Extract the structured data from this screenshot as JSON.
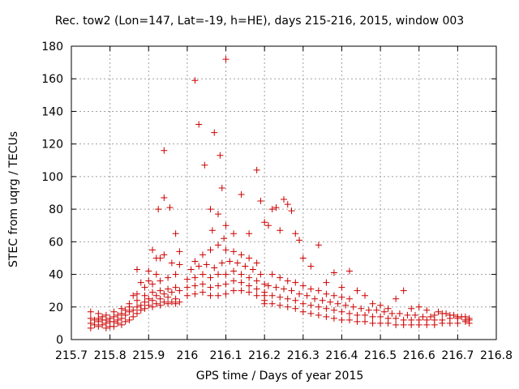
{
  "chart_data": {
    "type": "scatter",
    "title": "Rec. tow2 (Lon=147, Lat=-19, h=HE), days 215-216, 2015, window 003",
    "xlabel": "GPS time / Days of year 2015",
    "ylabel": "STEC from uqrg / TECUs",
    "xlim": [
      215.7,
      216.8
    ],
    "ylim": [
      0,
      180
    ],
    "x_ticks": [
      215.7,
      215.8,
      215.9,
      216.0,
      216.1,
      216.2,
      216.3,
      216.4,
      216.5,
      216.6,
      216.7,
      216.8
    ],
    "x_tick_labels": [
      "215.7",
      "215.8",
      "215.9",
      "216",
      "216.1",
      "216.2",
      "216.3",
      "216.4",
      "216.5",
      "216.6",
      "216.7",
      "216.8"
    ],
    "y_ticks": [
      0,
      20,
      40,
      60,
      80,
      100,
      120,
      140,
      160,
      180
    ],
    "y_tick_labels": [
      "0",
      "20",
      "40",
      "60",
      "80",
      "100",
      "120",
      "140",
      "160",
      "180"
    ],
    "grid": true,
    "marker": "plus",
    "color": "#cc0000",
    "series": [
      {
        "name": "",
        "points": [
          [
            215.75,
            7
          ],
          [
            215.77,
            8
          ],
          [
            215.79,
            7
          ],
          [
            215.81,
            8
          ],
          [
            215.83,
            9
          ],
          [
            215.85,
            12
          ],
          [
            215.87,
            16
          ],
          [
            215.89,
            19
          ],
          [
            215.91,
            20
          ],
          [
            215.93,
            21
          ],
          [
            215.95,
            22
          ],
          [
            215.97,
            22
          ],
          [
            215.75,
            10
          ],
          [
            215.77,
            11
          ],
          [
            215.79,
            10
          ],
          [
            215.81,
            11
          ],
          [
            215.83,
            13
          ],
          [
            215.85,
            17
          ],
          [
            215.87,
            20
          ],
          [
            215.89,
            23
          ],
          [
            215.91,
            24
          ],
          [
            215.93,
            25
          ],
          [
            215.95,
            26
          ],
          [
            215.97,
            25
          ],
          [
            215.75,
            13
          ],
          [
            215.77,
            13
          ],
          [
            215.79,
            12
          ],
          [
            215.81,
            14
          ],
          [
            215.83,
            16
          ],
          [
            215.85,
            20
          ],
          [
            215.87,
            24
          ],
          [
            215.89,
            27
          ],
          [
            215.91,
            29
          ],
          [
            215.93,
            30
          ],
          [
            215.95,
            31
          ],
          [
            215.97,
            32
          ],
          [
            215.75,
            17
          ],
          [
            215.77,
            16
          ],
          [
            215.79,
            15
          ],
          [
            215.81,
            17
          ],
          [
            215.83,
            19
          ],
          [
            215.85,
            22
          ],
          [
            215.87,
            28
          ],
          [
            215.89,
            32
          ],
          [
            215.91,
            34
          ],
          [
            215.93,
            36
          ],
          [
            215.95,
            38
          ],
          [
            215.97,
            40
          ],
          [
            215.76,
            9
          ],
          [
            215.78,
            9
          ],
          [
            215.8,
            8
          ],
          [
            215.82,
            10
          ],
          [
            215.84,
            11
          ],
          [
            215.86,
            14
          ],
          [
            215.88,
            18
          ],
          [
            215.9,
            21
          ],
          [
            215.92,
            22
          ],
          [
            215.94,
            23
          ],
          [
            215.96,
            23
          ],
          [
            215.98,
            23
          ],
          [
            215.76,
            12
          ],
          [
            215.78,
            12
          ],
          [
            215.8,
            11
          ],
          [
            215.82,
            12
          ],
          [
            215.84,
            15
          ],
          [
            215.86,
            18
          ],
          [
            215.88,
            21
          ],
          [
            215.9,
            25
          ],
          [
            215.92,
            27
          ],
          [
            215.94,
            28
          ],
          [
            215.96,
            29
          ],
          [
            215.98,
            30
          ],
          [
            215.78,
            14
          ],
          [
            215.8,
            13
          ],
          [
            215.82,
            15
          ],
          [
            215.84,
            18
          ],
          [
            215.86,
            27
          ],
          [
            215.88,
            35
          ],
          [
            215.9,
            42
          ],
          [
            215.92,
            50
          ],
          [
            215.94,
            52
          ],
          [
            215.96,
            47
          ],
          [
            215.98,
            54
          ],
          [
            215.87,
            43
          ],
          [
            215.9,
            36
          ],
          [
            215.91,
            55
          ],
          [
            215.92,
            40
          ],
          [
            215.925,
            80
          ],
          [
            215.93,
            50
          ],
          [
            215.94,
            87
          ],
          [
            215.94,
            116
          ],
          [
            215.955,
            81
          ],
          [
            215.97,
            65
          ],
          [
            215.98,
            46
          ],
          [
            216.0,
            27
          ],
          [
            216.02,
            28
          ],
          [
            216.04,
            29
          ],
          [
            216.06,
            27
          ],
          [
            216.08,
            27
          ],
          [
            216.1,
            28
          ],
          [
            216.12,
            30
          ],
          [
            216.14,
            30
          ],
          [
            216.16,
            29
          ],
          [
            216.18,
            27
          ],
          [
            216.2,
            24
          ],
          [
            216.0,
            32
          ],
          [
            216.02,
            33
          ],
          [
            216.04,
            34
          ],
          [
            216.06,
            32
          ],
          [
            216.08,
            33
          ],
          [
            216.1,
            34
          ],
          [
            216.12,
            36
          ],
          [
            216.14,
            35
          ],
          [
            216.16,
            33
          ],
          [
            216.18,
            31
          ],
          [
            216.2,
            29
          ],
          [
            216.0,
            37
          ],
          [
            216.02,
            38
          ],
          [
            216.04,
            40
          ],
          [
            216.06,
            38
          ],
          [
            216.08,
            40
          ],
          [
            216.1,
            40
          ],
          [
            216.12,
            42
          ],
          [
            216.14,
            40
          ],
          [
            216.16,
            38
          ],
          [
            216.18,
            36
          ],
          [
            216.2,
            34
          ],
          [
            216.01,
            43
          ],
          [
            216.03,
            45
          ],
          [
            216.05,
            46
          ],
          [
            216.07,
            44
          ],
          [
            216.09,
            47
          ],
          [
            216.11,
            48
          ],
          [
            216.13,
            47
          ],
          [
            216.15,
            45
          ],
          [
            216.17,
            43
          ],
          [
            216.19,
            40
          ],
          [
            216.02,
            48
          ],
          [
            216.04,
            52
          ],
          [
            216.06,
            55
          ],
          [
            216.08,
            58
          ],
          [
            216.1,
            55
          ],
          [
            216.12,
            54
          ],
          [
            216.14,
            52
          ],
          [
            216.16,
            50
          ],
          [
            216.18,
            47
          ],
          [
            216.02,
            159
          ],
          [
            216.03,
            132
          ],
          [
            216.045,
            107
          ],
          [
            216.06,
            80
          ],
          [
            216.065,
            67
          ],
          [
            216.07,
            127
          ],
          [
            216.08,
            77
          ],
          [
            216.085,
            113
          ],
          [
            216.09,
            93
          ],
          [
            216.095,
            62
          ],
          [
            216.1,
            172
          ],
          [
            216.1,
            70
          ],
          [
            216.12,
            65
          ],
          [
            216.14,
            89
          ],
          [
            216.16,
            65
          ],
          [
            216.18,
            104
          ],
          [
            216.19,
            85
          ],
          [
            216.2,
            72
          ],
          [
            216.21,
            70
          ],
          [
            216.22,
            80
          ],
          [
            216.23,
            81
          ],
          [
            216.24,
            67
          ],
          [
            216.25,
            86
          ],
          [
            216.26,
            83
          ],
          [
            216.27,
            79
          ],
          [
            216.28,
            65
          ],
          [
            216.29,
            61
          ],
          [
            216.3,
            50
          ],
          [
            216.32,
            45
          ],
          [
            216.34,
            58
          ],
          [
            216.2,
            22
          ],
          [
            216.22,
            22
          ],
          [
            216.24,
            21
          ],
          [
            216.26,
            20
          ],
          [
            216.28,
            19
          ],
          [
            216.3,
            17
          ],
          [
            216.32,
            16
          ],
          [
            216.34,
            15
          ],
          [
            216.36,
            14
          ],
          [
            216.38,
            13
          ],
          [
            216.4,
            12
          ],
          [
            216.2,
            27
          ],
          [
            216.22,
            27
          ],
          [
            216.24,
            26
          ],
          [
            216.26,
            25
          ],
          [
            216.28,
            24
          ],
          [
            216.3,
            22
          ],
          [
            216.32,
            21
          ],
          [
            216.34,
            20
          ],
          [
            216.36,
            19
          ],
          [
            216.38,
            18
          ],
          [
            216.4,
            17
          ],
          [
            216.21,
            33
          ],
          [
            216.23,
            32
          ],
          [
            216.25,
            31
          ],
          [
            216.27,
            30
          ],
          [
            216.29,
            28
          ],
          [
            216.31,
            27
          ],
          [
            216.33,
            25
          ],
          [
            216.35,
            24
          ],
          [
            216.37,
            23
          ],
          [
            216.39,
            22
          ],
          [
            216.41,
            21
          ],
          [
            216.22,
            40
          ],
          [
            216.24,
            38
          ],
          [
            216.26,
            36
          ],
          [
            216.28,
            35
          ],
          [
            216.3,
            33
          ],
          [
            216.32,
            31
          ],
          [
            216.34,
            30
          ],
          [
            216.36,
            28
          ],
          [
            216.38,
            27
          ],
          [
            216.4,
            26
          ],
          [
            216.42,
            25
          ],
          [
            216.36,
            35
          ],
          [
            216.38,
            41
          ],
          [
            216.4,
            32
          ],
          [
            216.42,
            42
          ],
          [
            216.44,
            30
          ],
          [
            216.46,
            27
          ],
          [
            216.48,
            22
          ],
          [
            216.5,
            21
          ],
          [
            216.52,
            19
          ],
          [
            216.54,
            25
          ],
          [
            216.56,
            30
          ],
          [
            216.42,
            12
          ],
          [
            216.44,
            11
          ],
          [
            216.46,
            11
          ],
          [
            216.48,
            10
          ],
          [
            216.5,
            10
          ],
          [
            216.52,
            10
          ],
          [
            216.54,
            9
          ],
          [
            216.56,
            9
          ],
          [
            216.58,
            9
          ],
          [
            216.6,
            9
          ],
          [
            216.62,
            9
          ],
          [
            216.42,
            16
          ],
          [
            216.44,
            15
          ],
          [
            216.46,
            15
          ],
          [
            216.48,
            14
          ],
          [
            216.5,
            14
          ],
          [
            216.52,
            13
          ],
          [
            216.54,
            13
          ],
          [
            216.56,
            12
          ],
          [
            216.58,
            12
          ],
          [
            216.6,
            12
          ],
          [
            216.62,
            12
          ],
          [
            216.43,
            20
          ],
          [
            216.45,
            19
          ],
          [
            216.47,
            18
          ],
          [
            216.49,
            18
          ],
          [
            216.51,
            17
          ],
          [
            216.53,
            16
          ],
          [
            216.55,
            16
          ],
          [
            216.57,
            15
          ],
          [
            216.59,
            15
          ],
          [
            216.61,
            14
          ],
          [
            216.63,
            14
          ],
          [
            216.64,
            9
          ],
          [
            216.66,
            10
          ],
          [
            216.68,
            10
          ],
          [
            216.7,
            10
          ],
          [
            216.72,
            11
          ],
          [
            216.73,
            10
          ],
          [
            216.64,
            12
          ],
          [
            216.66,
            12
          ],
          [
            216.68,
            13
          ],
          [
            216.7,
            13
          ],
          [
            216.72,
            12
          ],
          [
            216.73,
            12
          ],
          [
            216.64,
            15
          ],
          [
            216.66,
            16
          ],
          [
            216.68,
            15
          ],
          [
            216.7,
            14
          ],
          [
            216.72,
            14
          ],
          [
            216.73,
            13
          ],
          [
            216.58,
            19
          ],
          [
            216.6,
            20
          ],
          [
            216.62,
            18
          ],
          [
            216.65,
            17
          ],
          [
            216.67,
            16
          ],
          [
            216.69,
            15
          ],
          [
            216.71,
            14
          ]
        ]
      }
    ]
  }
}
